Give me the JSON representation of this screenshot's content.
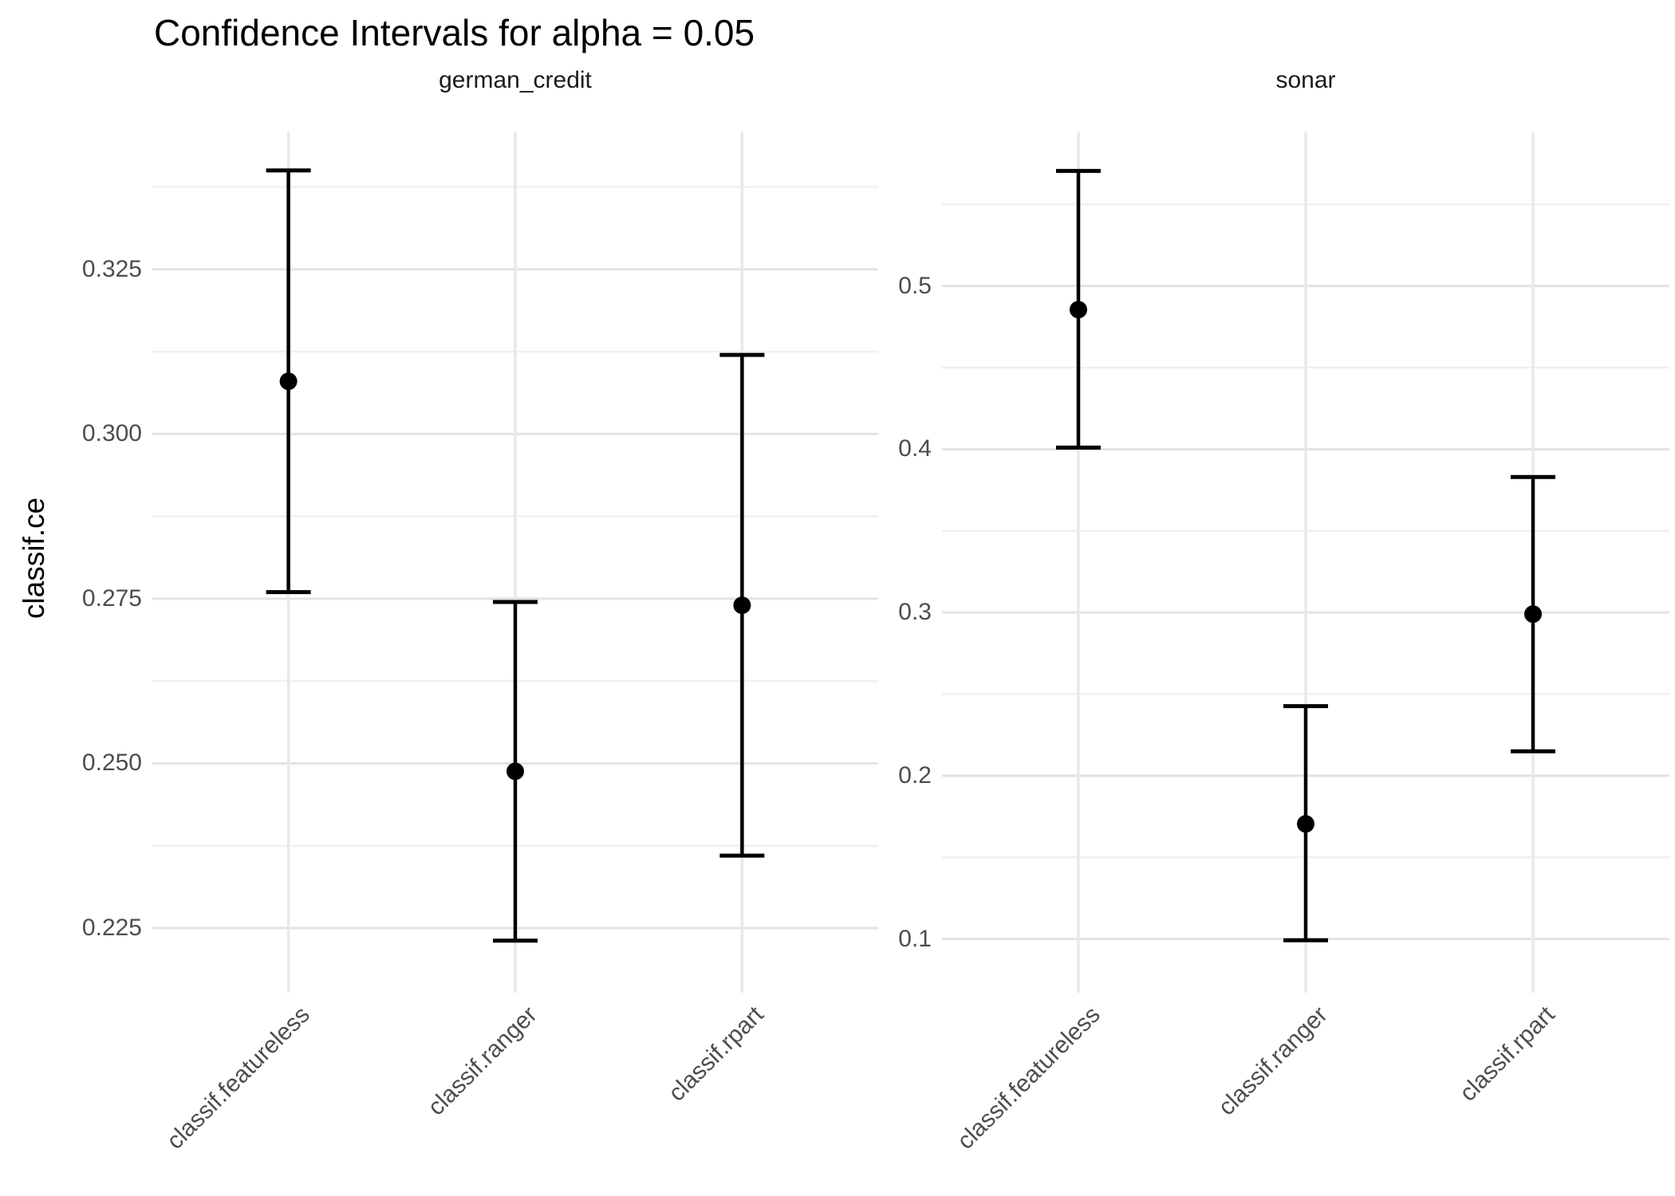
{
  "title": "Confidence Intervals for alpha = 0.05",
  "y_axis_label": "classif.ce",
  "colors": {
    "background": "#ffffff",
    "title_text": "#000000",
    "strip_text": "#1a1a1a",
    "tick_label_text": "#4d4d4d",
    "grid_major": "#e3e3e3",
    "grid_minor": "#f0f0f0",
    "grid_vertical": "#e9e9e9",
    "errorbar": "#000000",
    "point": "#000000"
  },
  "chart_data": {
    "type": "errorbar",
    "title": "Confidence Intervals for alpha = 0.05",
    "ylabel": "classif.ce",
    "alpha_shown_in_title": "0.05",
    "grid": "on",
    "legend_position": "none",
    "x_categories": [
      "classif.featureless",
      "classif.ranger",
      "classif.rpart"
    ],
    "facets": [
      {
        "label": "german_credit",
        "ylim": [
          0.2152,
          0.3459
        ],
        "y_ticks_major": [
          0.225,
          0.25,
          0.275,
          0.3,
          0.325
        ],
        "y_tick_labels": [
          "0.225",
          "0.250",
          "0.275",
          "0.300",
          "0.325"
        ],
        "y_ticks_minor": [
          0.2375,
          0.2625,
          0.2875,
          0.3125,
          0.3375
        ],
        "series": [
          {
            "learner": "classif.featureless",
            "mean": 0.308,
            "lower": 0.276,
            "upper": 0.34
          },
          {
            "learner": "classif.ranger",
            "mean": 0.2488,
            "lower": 0.2231,
            "upper": 0.2745
          },
          {
            "learner": "classif.rpart",
            "mean": 0.274,
            "lower": 0.236,
            "upper": 0.312
          }
        ]
      },
      {
        "label": "sonar",
        "ylim": [
          0.0671,
          0.5946
        ],
        "y_ticks_major": [
          0.1,
          0.2,
          0.3,
          0.4,
          0.5
        ],
        "y_tick_labels": [
          "0.1",
          "0.2",
          "0.3",
          "0.4",
          "0.5"
        ],
        "y_ticks_minor": [
          0.15,
          0.25,
          0.35,
          0.45,
          0.55
        ],
        "series": [
          {
            "learner": "classif.featureless",
            "mean": 0.4855,
            "lower": 0.401,
            "upper": 0.5705
          },
          {
            "learner": "classif.ranger",
            "mean": 0.1705,
            "lower": 0.0992,
            "upper": 0.2426
          },
          {
            "learner": "classif.rpart",
            "mean": 0.299,
            "lower": 0.215,
            "upper": 0.383
          }
        ]
      }
    ]
  }
}
